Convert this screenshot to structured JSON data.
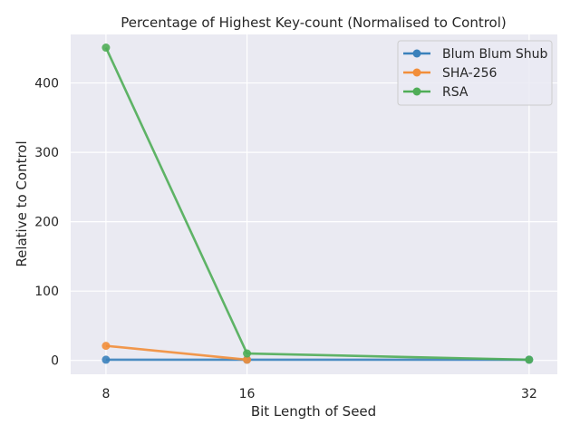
{
  "chart_data": {
    "type": "line",
    "title": "Percentage of Highest Key-count (Normalised to Control)",
    "xlabel": "Bit Length of Seed",
    "ylabel": "Relative to Control",
    "x": [
      8,
      16,
      32
    ],
    "xticks": [
      "8",
      "16",
      "32"
    ],
    "xlim": [
      6.0,
      33.6
    ],
    "ylim": [
      -20,
      470
    ],
    "yticks": [
      "0",
      "100",
      "200",
      "300",
      "400"
    ],
    "grid": true,
    "legend_position": "top-right",
    "series": [
      {
        "name": "Blum Blum Shub",
        "color": "#3a81bb",
        "values": [
          1,
          1,
          1
        ]
      },
      {
        "name": "SHA-256",
        "color": "#f28e3a",
        "values": [
          21,
          1,
          null
        ]
      },
      {
        "name": "RSA",
        "color": "#4fad57",
        "values": [
          451,
          10,
          1
        ]
      }
    ]
  }
}
